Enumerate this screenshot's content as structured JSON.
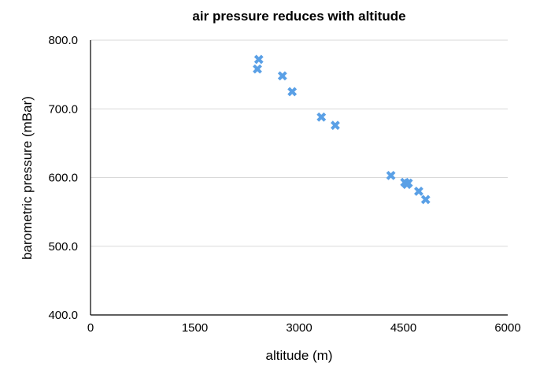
{
  "chart_data": {
    "type": "scatter",
    "title": "air pressure reduces with altitude",
    "xlabel": "altitude (m)",
    "ylabel": "barometric pressure (mBar)",
    "xlim": [
      0,
      6000
    ],
    "ylim": [
      400,
      800
    ],
    "xticks": [
      0,
      1500,
      3000,
      4500,
      6000
    ],
    "yticks": [
      400,
      500,
      600,
      700,
      800
    ],
    "xtick_labels": [
      "0",
      "1500",
      "3000",
      "4500",
      "6000"
    ],
    "ytick_labels": [
      "400.0",
      "500.0",
      "600.0",
      "700.0",
      "800.0"
    ],
    "grid": "horizontal",
    "legend": "none",
    "marker_color": "#5aa0e6",
    "marker": "x",
    "points": [
      {
        "x": 2420,
        "y": 772
      },
      {
        "x": 2400,
        "y": 758
      },
      {
        "x": 2760,
        "y": 748
      },
      {
        "x": 2900,
        "y": 725
      },
      {
        "x": 3320,
        "y": 688
      },
      {
        "x": 3520,
        "y": 676
      },
      {
        "x": 4320,
        "y": 603
      },
      {
        "x": 4520,
        "y": 593
      },
      {
        "x": 4570,
        "y": 592
      },
      {
        "x": 4550,
        "y": 590
      },
      {
        "x": 4720,
        "y": 580
      },
      {
        "x": 4820,
        "y": 568
      }
    ]
  }
}
